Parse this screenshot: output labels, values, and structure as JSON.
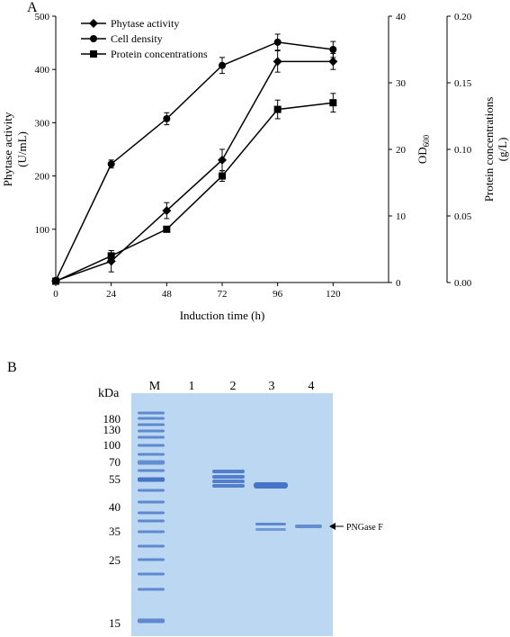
{
  "panel_a_label": "A",
  "panel_b_label": "B",
  "chart_data": {
    "type": "line",
    "title": "",
    "xlabel": "Induction time (h)",
    "ylabel": "Phytase activity (U/mL)",
    "y2label": "OD",
    "y2label_sub": "600",
    "y3label": "Protein concentrations (g/L)",
    "x": [
      0,
      24,
      48,
      72,
      96,
      120
    ],
    "xlim": [
      0,
      144
    ],
    "ylim": [
      0,
      500
    ],
    "y2lim": [
      0,
      40
    ],
    "y3lim": [
      0,
      0.2
    ],
    "x_ticks": [
      "0",
      "24",
      "48",
      "72",
      "96",
      "120"
    ],
    "y_ticks": [
      "0",
      "100",
      "200",
      "300",
      "400",
      "500"
    ],
    "y2_ticks": [
      "0",
      "10",
      "20",
      "30",
      "40"
    ],
    "y3_ticks": [
      "0.00",
      "0.05",
      "0.10",
      "0.15",
      "0.20"
    ],
    "legend_position": "top-left",
    "series": [
      {
        "name": "Phytase activity",
        "axis": "y",
        "marker": "diamond",
        "values": [
          3,
          40,
          135,
          230,
          415,
          415
        ],
        "errors": [
          3,
          20,
          15,
          20,
          20,
          15
        ]
      },
      {
        "name": "Cell density",
        "axis": "y2",
        "marker": "circle",
        "values": [
          0.3,
          17.8,
          24.6,
          32.6,
          36.1,
          35.0
        ],
        "errors": [
          0.2,
          0.6,
          0.9,
          1.2,
          1.2,
          1.2
        ]
      },
      {
        "name": "Protein concentrations",
        "axis": "y3",
        "marker": "square",
        "values": [
          0.001,
          0.02,
          0.04,
          0.08,
          0.13,
          0.135
        ],
        "errors": [
          0.001,
          0.004,
          0.002,
          0.004,
          0.007,
          0.007
        ]
      }
    ]
  },
  "gel": {
    "unit_label": "kDa",
    "lanes": [
      "M",
      "1",
      "2",
      "3",
      "4"
    ],
    "markers": [
      "180",
      "130",
      "100",
      "70",
      "55",
      "40",
      "35",
      "25",
      "15"
    ],
    "annotation": "PNGase F",
    "background_color": "#bcd7f2",
    "band_color": "#3f6fc4"
  }
}
